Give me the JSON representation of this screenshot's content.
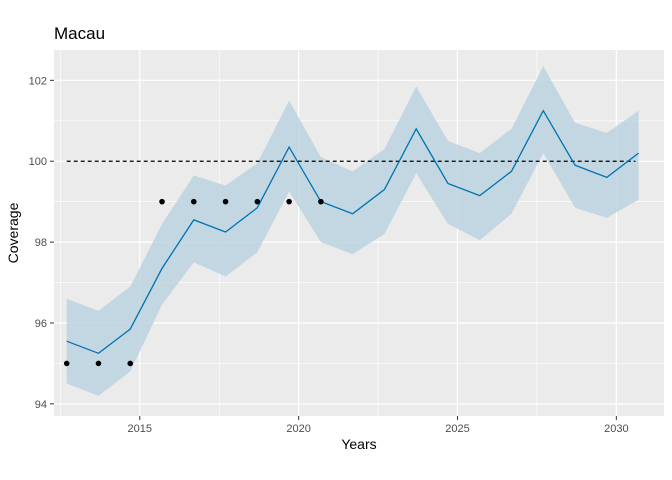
{
  "chart_data": {
    "type": "line",
    "title": "Macau",
    "xlabel": "Years",
    "ylabel": "Coverage",
    "xlim": [
      2012.3,
      2031.5
    ],
    "ylim": [
      93.7,
      102.75
    ],
    "x_ticks": [
      2015,
      2020,
      2025,
      2030
    ],
    "y_ticks": [
      94,
      96,
      98,
      100,
      102
    ],
    "grid": true,
    "legend": "none",
    "reference_line": {
      "y": 100,
      "x_range": [
        2012.7,
        2030.6
      ],
      "style": "dashed"
    },
    "forecast": {
      "x": [
        2012.7,
        2013.7,
        2014.7,
        2015.7,
        2016.7,
        2017.7,
        2018.7,
        2019.7,
        2020.7,
        2021.7,
        2022.7,
        2023.7,
        2024.7,
        2025.7,
        2026.7,
        2027.7,
        2028.7,
        2029.7,
        2030.7
      ],
      "mean": [
        95.55,
        95.25,
        95.85,
        97.35,
        98.55,
        98.25,
        98.85,
        100.35,
        99.0,
        98.7,
        99.3,
        100.8,
        99.45,
        99.15,
        99.75,
        101.25,
        99.9,
        99.6,
        100.2
      ],
      "lower": [
        94.5,
        94.2,
        94.8,
        96.45,
        97.5,
        97.15,
        97.75,
        99.25,
        98.0,
        97.7,
        98.2,
        99.7,
        98.45,
        98.05,
        98.7,
        100.2,
        98.85,
        98.6,
        99.05
      ],
      "upper": [
        96.6,
        96.3,
        96.9,
        98.45,
        99.65,
        99.4,
        99.95,
        101.5,
        100.1,
        99.75,
        100.3,
        101.85,
        100.5,
        100.2,
        100.8,
        102.35,
        100.95,
        100.7,
        101.25
      ]
    },
    "observed": {
      "x": [
        2012.7,
        2013.7,
        2014.7,
        2015.7,
        2016.7,
        2017.7,
        2018.7,
        2019.7,
        2020.7
      ],
      "y": [
        95,
        95,
        95,
        99,
        99,
        99,
        99,
        99,
        99
      ]
    },
    "colors": {
      "panel": "#ebebeb",
      "grid_major": "#ffffff",
      "band": "#bcd3e0",
      "line": "#0072b2",
      "points": "#000000",
      "reference": "#000000"
    }
  }
}
